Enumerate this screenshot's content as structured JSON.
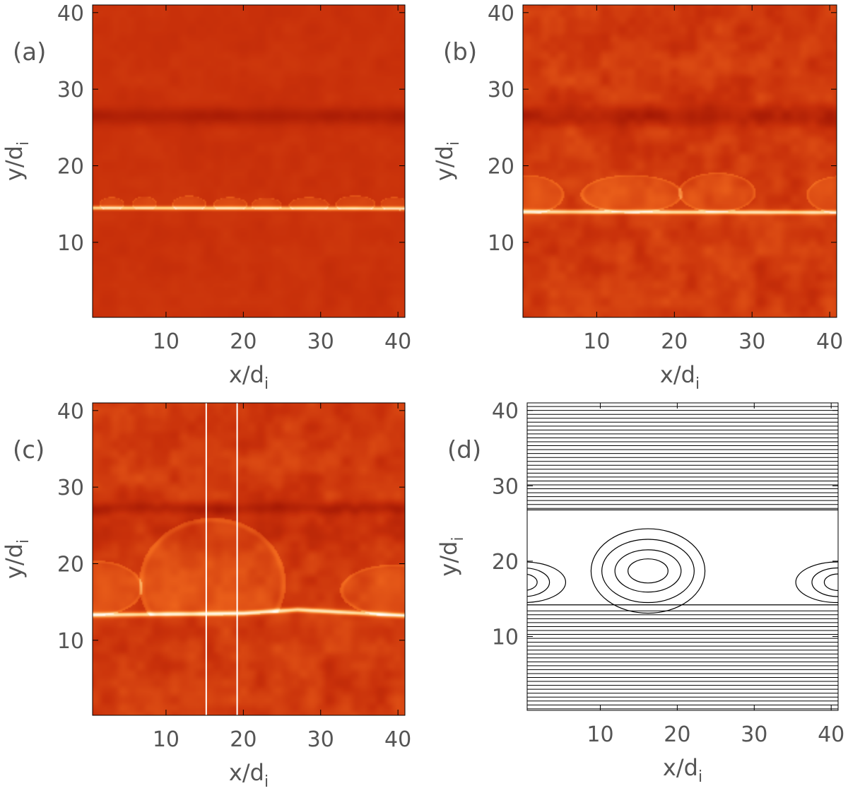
{
  "chart_data": [
    {
      "type": "heatmap",
      "panel_label": "(a)",
      "xlabel": "x/d",
      "xlabel_sub": "i",
      "ylabel": "y/d",
      "ylabel_sub": "i",
      "xlim": [
        0.5,
        40.9
      ],
      "ylim": [
        0.2,
        41.0
      ],
      "xticks": [
        10,
        20,
        30,
        40
      ],
      "yticks": [
        10,
        20,
        30,
        40
      ],
      "colormap": [
        "#8f0a00",
        "#c8300a",
        "#f26a1e",
        "#ffcf80",
        "#ffffff"
      ],
      "background_level": 0.26,
      "dark_bands": [
        {
          "y": 26.5,
          "width": 2.2,
          "depth": 0.12
        }
      ],
      "bright_layers": [
        {
          "y_points": [
            [
              0,
              14.5
            ],
            [
              40.9,
              14.4
            ]
          ],
          "width": 0.25
        }
      ],
      "islands": [
        {
          "xc": 3.0,
          "yc": 15.0,
          "rx": 1.6,
          "ry": 0.9
        },
        {
          "xc": 7.2,
          "yc": 15.0,
          "rx": 1.6,
          "ry": 1.0
        },
        {
          "xc": 13.0,
          "yc": 15.0,
          "rx": 2.2,
          "ry": 1.1
        },
        {
          "xc": 18.3,
          "yc": 14.9,
          "rx": 2.2,
          "ry": 1.0
        },
        {
          "xc": 23.0,
          "yc": 14.9,
          "rx": 2.0,
          "ry": 0.9
        },
        {
          "xc": 28.5,
          "yc": 14.9,
          "rx": 2.6,
          "ry": 1.0
        },
        {
          "xc": 34.5,
          "yc": 15.0,
          "rx": 2.6,
          "ry": 1.1
        },
        {
          "xc": 39.5,
          "yc": 15.0,
          "rx": 1.8,
          "ry": 0.9
        }
      ],
      "vertical_lines": [],
      "noise": 0.02
    },
    {
      "type": "heatmap",
      "panel_label": "(b)",
      "xlabel": "x/d",
      "xlabel_sub": "i",
      "ylabel": "y/d",
      "ylabel_sub": "i",
      "xlim": [
        0.5,
        40.9
      ],
      "ylim": [
        0.2,
        41.0
      ],
      "xticks": [
        10,
        20,
        30,
        40
      ],
      "yticks": [
        10,
        20,
        30,
        40
      ],
      "colormap": [
        "#8f0a00",
        "#c8300a",
        "#f26a1e",
        "#ffcf80",
        "#ffffff"
      ],
      "background_level": 0.3,
      "dark_bands": [
        {
          "y": 26.5,
          "width": 2.6,
          "depth": 0.14
        }
      ],
      "bright_layers": [
        {
          "y_points": [
            [
              0,
              14.0
            ],
            [
              40.9,
              13.9
            ]
          ],
          "width": 0.28
        }
      ],
      "islands": [
        {
          "xc": 1.0,
          "yc": 16.2,
          "rx": 4.8,
          "ry": 2.6
        },
        {
          "xc": 14.5,
          "yc": 16.3,
          "rx": 6.6,
          "ry": 2.5
        },
        {
          "xc": 25.5,
          "yc": 16.5,
          "rx": 5.0,
          "ry": 2.6
        },
        {
          "xc": 41.5,
          "yc": 16.2,
          "rx": 4.5,
          "ry": 2.5
        }
      ],
      "vertical_lines": [],
      "noise": 0.06
    },
    {
      "type": "heatmap",
      "panel_label": "(c)",
      "xlabel": "x/d",
      "xlabel_sub": "i",
      "ylabel": "y/d",
      "ylabel_sub": "i",
      "xlim": [
        0.5,
        40.9
      ],
      "ylim": [
        0.2,
        41.0
      ],
      "xticks": [
        10,
        20,
        30,
        40
      ],
      "yticks": [
        10,
        20,
        30,
        40
      ],
      "colormap": [
        "#8f0a00",
        "#c8300a",
        "#f26a1e",
        "#ffcf80",
        "#ffffff"
      ],
      "background_level": 0.3,
      "dark_bands": [
        {
          "y": 27.2,
          "width": 1.8,
          "depth": 0.14
        },
        {
          "y": 24.0,
          "width": 4.0,
          "depth": 0.06
        }
      ],
      "bright_layers": [
        {
          "y_points": [
            [
              0,
              13.3
            ],
            [
              20,
              13.5
            ],
            [
              27,
              14.0
            ],
            [
              40.9,
              13.2
            ]
          ],
          "width": 0.3
        }
      ],
      "islands": [
        {
          "xc": 1.0,
          "yc": 16.8,
          "rx": 6.0,
          "ry": 3.6
        },
        {
          "xc": 16.0,
          "yc": 17.5,
          "rx": 9.5,
          "ry": 8.5
        },
        {
          "xc": 39.5,
          "yc": 16.5,
          "rx": 7.0,
          "ry": 3.4
        }
      ],
      "vertical_lines": [
        15.2,
        19.2
      ],
      "noise": 0.06
    },
    {
      "type": "contour",
      "panel_label": "(d)",
      "xlabel": "x/d",
      "xlabel_sub": "i",
      "ylabel": "y/d",
      "ylabel_sub": "i",
      "xlim": [
        0.5,
        40.9
      ],
      "ylim": [
        0.2,
        41.0
      ],
      "xticks": [
        10,
        20,
        30,
        40
      ],
      "yticks": [
        10,
        20,
        30,
        40
      ],
      "line_color": "#000000",
      "upper_field_lines_y": [
        27.0,
        41.0
      ],
      "lower_field_lines_y": [
        0.4,
        13.9
      ],
      "field_line_spacing": 0.52,
      "islands": [
        {
          "xc": 16.2,
          "yc": 18.7,
          "rx": [
            2.6,
            4.3,
            6.0,
            7.4
          ],
          "ry": [
            1.6,
            2.8,
            4.2,
            5.6
          ]
        },
        {
          "xc": 0.0,
          "yc": 17.2,
          "rx": [
            1.8,
            3.4,
            5.5
          ],
          "ry": [
            1.1,
            1.9,
            2.7
          ]
        },
        {
          "xc": 40.9,
          "yc": 17.2,
          "rx": [
            1.8,
            3.4,
            5.5
          ],
          "ry": [
            1.1,
            1.9,
            2.7
          ]
        }
      ]
    }
  ]
}
